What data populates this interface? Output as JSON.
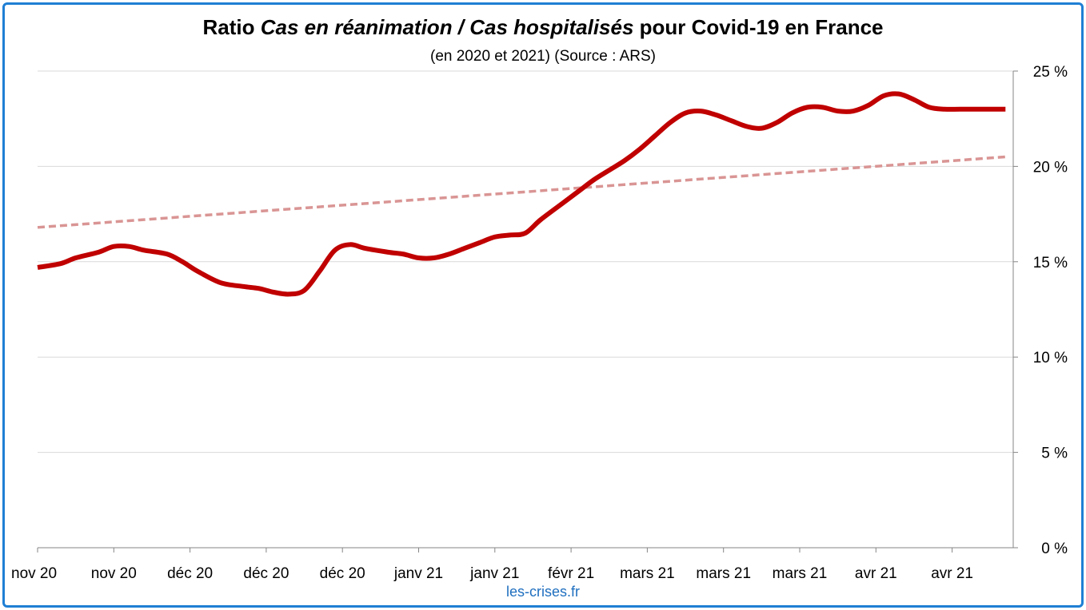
{
  "chart_data": {
    "type": "line",
    "title_parts": [
      {
        "text": "Ratio ",
        "italic": false
      },
      {
        "text": "Cas en réanimation / Cas hospitalisés",
        "italic": true
      },
      {
        "text": " pour Covid-19 en France",
        "italic": false
      }
    ],
    "subtitle": "(en 2020 et 2021) (Source : ARS)",
    "categories": [
      "nov 20",
      "nov 20",
      "déc 20",
      "déc 20",
      "déc 20",
      "janv 21",
      "janv 21",
      "févr 21",
      "mars 21",
      "mars 21",
      "mars 21",
      "avr 21",
      "avr 21"
    ],
    "ylim": [
      0,
      25
    ],
    "y_ticks": [
      "0 %",
      "5 %",
      "10 %",
      "15 %",
      "20 %",
      "25 %"
    ],
    "y_axis_side": "right",
    "grid": true,
    "series": [
      {
        "kind": "ratio",
        "color": "#c00000",
        "x": [
          0,
          0.3,
          0.5,
          0.8,
          1.0,
          1.2,
          1.4,
          1.7,
          1.9,
          2.1,
          2.4,
          2.7,
          2.9,
          3.1,
          3.3,
          3.5,
          3.7,
          3.9,
          4.1,
          4.3,
          4.6,
          4.8,
          5.0,
          5.2,
          5.4,
          5.6,
          5.8,
          6.0,
          6.2,
          6.4,
          6.6,
          6.9,
          7.1,
          7.3,
          7.5,
          7.7,
          7.9,
          8.1,
          8.3,
          8.5,
          8.7,
          8.9,
          9.1,
          9.3,
          9.5,
          9.7,
          9.9,
          10.1,
          10.3,
          10.5,
          10.7,
          10.9,
          11.1,
          11.3,
          11.5,
          11.7,
          11.9,
          12.1,
          12.3,
          12.7
        ],
        "y": [
          14.7,
          14.9,
          15.2,
          15.5,
          15.8,
          15.8,
          15.6,
          15.4,
          15.0,
          14.5,
          13.9,
          13.7,
          13.6,
          13.4,
          13.3,
          13.5,
          14.5,
          15.6,
          15.9,
          15.7,
          15.5,
          15.4,
          15.2,
          15.2,
          15.4,
          15.7,
          16.0,
          16.3,
          16.4,
          16.5,
          17.2,
          18.1,
          18.7,
          19.3,
          19.8,
          20.3,
          20.9,
          21.6,
          22.3,
          22.8,
          22.9,
          22.7,
          22.4,
          22.1,
          22.0,
          22.3,
          22.8,
          23.1,
          23.1,
          22.9,
          22.9,
          23.2,
          23.7,
          23.8,
          23.5,
          23.1,
          23.0,
          23.0,
          23.0,
          23.0
        ]
      },
      {
        "kind": "trend",
        "color": "#d99594",
        "dashed": true,
        "x": [
          0,
          12.7
        ],
        "y": [
          16.8,
          20.5
        ]
      }
    ]
  },
  "footer": {
    "source": "les-crises.fr"
  }
}
